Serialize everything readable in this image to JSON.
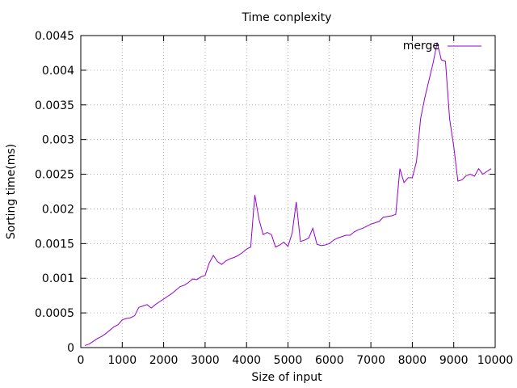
{
  "chart_data": {
    "type": "line",
    "title": "Time conplexity",
    "xlabel": "Size of input",
    "ylabel": "Sorting time(ms)",
    "xlim": [
      0,
      10000
    ],
    "ylim": [
      0,
      0.0045
    ],
    "xticks": [
      0,
      1000,
      2000,
      3000,
      4000,
      5000,
      6000,
      7000,
      8000,
      9000,
      10000
    ],
    "xtick_labels": [
      "0",
      "1000",
      "2000",
      "3000",
      "4000",
      "5000",
      "6000",
      "7000",
      "8000",
      "9000",
      "10000"
    ],
    "yticks": [
      0,
      0.0005,
      0.001,
      0.0015,
      0.002,
      0.0025,
      0.003,
      0.0035,
      0.004,
      0.0045
    ],
    "ytick_labels": [
      "0",
      "0.0005",
      "0.001",
      "0.0015",
      "0.002",
      "0.0025",
      "0.003",
      "0.0035",
      "0.004",
      "0.0045"
    ],
    "grid": true,
    "legend_position": "top-right",
    "series": [
      {
        "name": "merge",
        "color": "#9400d3",
        "x": [
          100,
          200,
          300,
          400,
          500,
          600,
          700,
          800,
          900,
          1000,
          1100,
          1200,
          1300,
          1400,
          1500,
          1600,
          1700,
          1800,
          1900,
          2000,
          2100,
          2200,
          2300,
          2400,
          2500,
          2600,
          2700,
          2800,
          2900,
          3000,
          3100,
          3200,
          3300,
          3400,
          3500,
          3600,
          3700,
          3800,
          3900,
          4000,
          4100,
          4200,
          4300,
          4400,
          4500,
          4600,
          4700,
          4800,
          4900,
          5000,
          5100,
          5200,
          5300,
          5400,
          5500,
          5600,
          5700,
          5800,
          5900,
          6000,
          6100,
          6200,
          6300,
          6400,
          6500,
          6600,
          6700,
          6800,
          6900,
          7000,
          7100,
          7200,
          7300,
          7400,
          7500,
          7600,
          7700,
          7800,
          7900,
          8000,
          8100,
          8200,
          8300,
          8400,
          8500,
          8600,
          8700,
          8800,
          8900,
          9000,
          9100,
          9200,
          9300,
          9400,
          9500,
          9600,
          9700,
          9800,
          9900
        ],
        "y": [
          3e-05,
          5e-05,
          9e-05,
          0.00013,
          0.00016,
          0.0002,
          0.00025,
          0.0003,
          0.00033,
          0.0004,
          0.00042,
          0.00043,
          0.00046,
          0.00058,
          0.0006,
          0.00062,
          0.00057,
          0.00062,
          0.00066,
          0.0007,
          0.00074,
          0.00078,
          0.00083,
          0.00088,
          0.0009,
          0.00094,
          0.00099,
          0.00098,
          0.00102,
          0.00104,
          0.00122,
          0.00133,
          0.00124,
          0.0012,
          0.00125,
          0.00128,
          0.0013,
          0.00133,
          0.00137,
          0.00142,
          0.00145,
          0.0022,
          0.00185,
          0.00163,
          0.00166,
          0.00163,
          0.00145,
          0.00148,
          0.00152,
          0.00146,
          0.00165,
          0.0021,
          0.00153,
          0.00155,
          0.00158,
          0.00172,
          0.00149,
          0.00147,
          0.00148,
          0.0015,
          0.00155,
          0.00158,
          0.0016,
          0.00162,
          0.00162,
          0.00167,
          0.0017,
          0.00172,
          0.00175,
          0.00178,
          0.0018,
          0.00182,
          0.00188,
          0.00189,
          0.0019,
          0.00192,
          0.00258,
          0.00238,
          0.00245,
          0.00245,
          0.00268,
          0.0033,
          0.0036,
          0.00385,
          0.0041,
          0.0044,
          0.00415,
          0.00413,
          0.0033,
          0.0029,
          0.0024,
          0.00242,
          0.00248,
          0.0025,
          0.00247,
          0.00258,
          0.0025,
          0.00254,
          0.00258
        ]
      }
    ]
  }
}
